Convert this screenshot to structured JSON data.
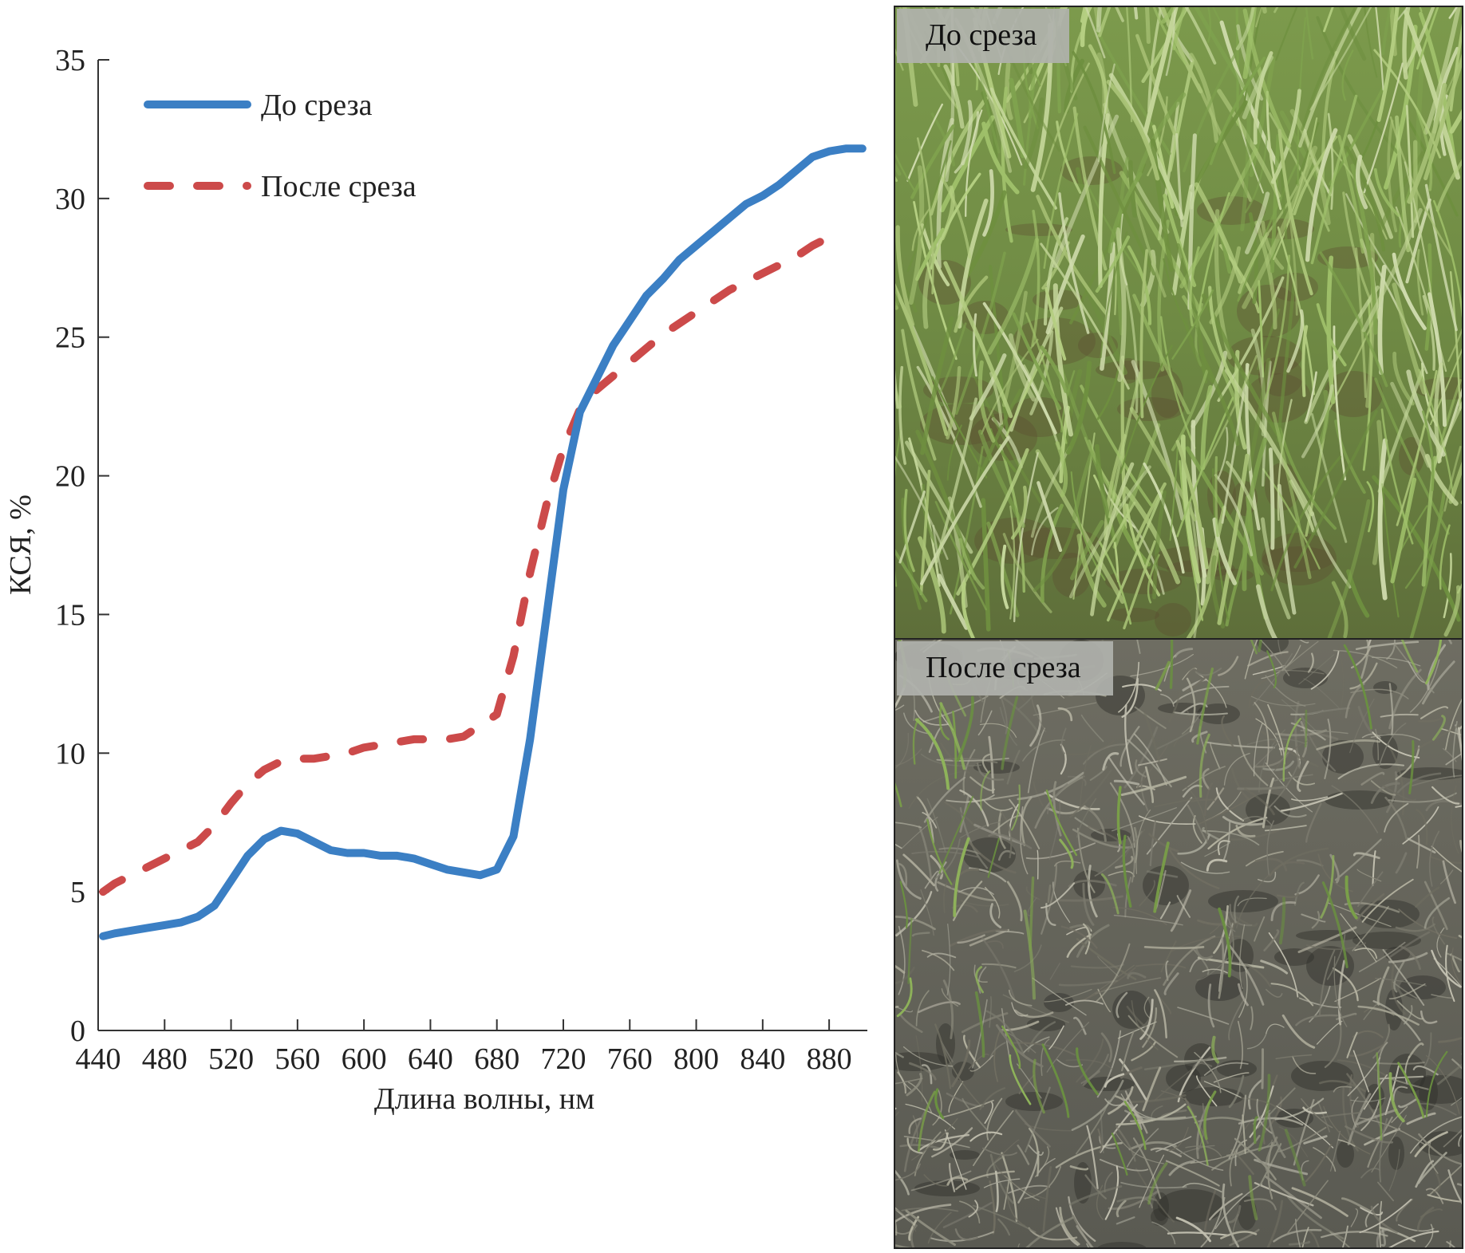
{
  "chart_data": {
    "type": "line",
    "title": "",
    "xlabel": "Длина волны, нм",
    "ylabel": "КСЯ, %",
    "xlim": [
      440,
      903
    ],
    "ylim": [
      0,
      35
    ],
    "xticks": [
      440,
      480,
      520,
      560,
      600,
      640,
      680,
      720,
      760,
      800,
      840,
      880
    ],
    "yticks": [
      0,
      5,
      10,
      15,
      20,
      25,
      30,
      35
    ],
    "grid": false,
    "legend_position": "top-left",
    "series": [
      {
        "name": "До среза",
        "color": "#3b7fc4",
        "style": "solid",
        "x": [
          443,
          450,
          460,
          470,
          480,
          490,
          500,
          510,
          520,
          530,
          540,
          550,
          560,
          570,
          580,
          590,
          600,
          610,
          620,
          630,
          640,
          650,
          660,
          670,
          680,
          690,
          700,
          710,
          720,
          730,
          740,
          750,
          760,
          770,
          780,
          790,
          800,
          810,
          820,
          830,
          840,
          850,
          860,
          870,
          880,
          890,
          900
        ],
        "y": [
          3.4,
          3.5,
          3.6,
          3.7,
          3.8,
          3.9,
          4.1,
          4.5,
          5.4,
          6.3,
          6.9,
          7.2,
          7.1,
          6.8,
          6.5,
          6.4,
          6.4,
          6.3,
          6.3,
          6.2,
          6.0,
          5.8,
          5.7,
          5.6,
          5.8,
          7.0,
          10.5,
          15.0,
          19.5,
          22.3,
          23.5,
          24.7,
          25.6,
          26.5,
          27.1,
          27.8,
          28.3,
          28.8,
          29.3,
          29.8,
          30.1,
          30.5,
          31.0,
          31.5,
          31.7,
          31.8,
          31.8
        ]
      },
      {
        "name": "После среза",
        "color": "#cc4a4a",
        "style": "dashed",
        "x": [
          443,
          450,
          460,
          470,
          480,
          490,
          500,
          510,
          520,
          530,
          540,
          550,
          560,
          570,
          580,
          590,
          600,
          610,
          620,
          630,
          640,
          650,
          660,
          670,
          680,
          690,
          700,
          710,
          720,
          730,
          740,
          750,
          760,
          770,
          780,
          790,
          800,
          810,
          820,
          830,
          840,
          850,
          860,
          870,
          880
        ],
        "y": [
          5.0,
          5.3,
          5.6,
          5.9,
          6.2,
          6.5,
          6.8,
          7.4,
          8.2,
          8.9,
          9.4,
          9.7,
          9.8,
          9.8,
          9.9,
          10.0,
          10.2,
          10.3,
          10.4,
          10.5,
          10.5,
          10.5,
          10.6,
          11.0,
          11.4,
          13.5,
          16.5,
          19.0,
          21.0,
          22.4,
          23.1,
          23.6,
          24.1,
          24.6,
          25.1,
          25.5,
          25.9,
          26.3,
          26.7,
          27.0,
          27.3,
          27.6,
          27.9,
          28.3,
          28.6
        ]
      }
    ]
  },
  "photos": [
    {
      "label": "До среза",
      "content": "green grass before cutting"
    },
    {
      "label": "После среза",
      "content": "cut grass stubble with dry residue"
    }
  ],
  "colors": {
    "before_line": "#3b7fc4",
    "after_line": "#cc4a4a",
    "axis": "#333333",
    "photo_label_bg": "#afb2ac"
  }
}
